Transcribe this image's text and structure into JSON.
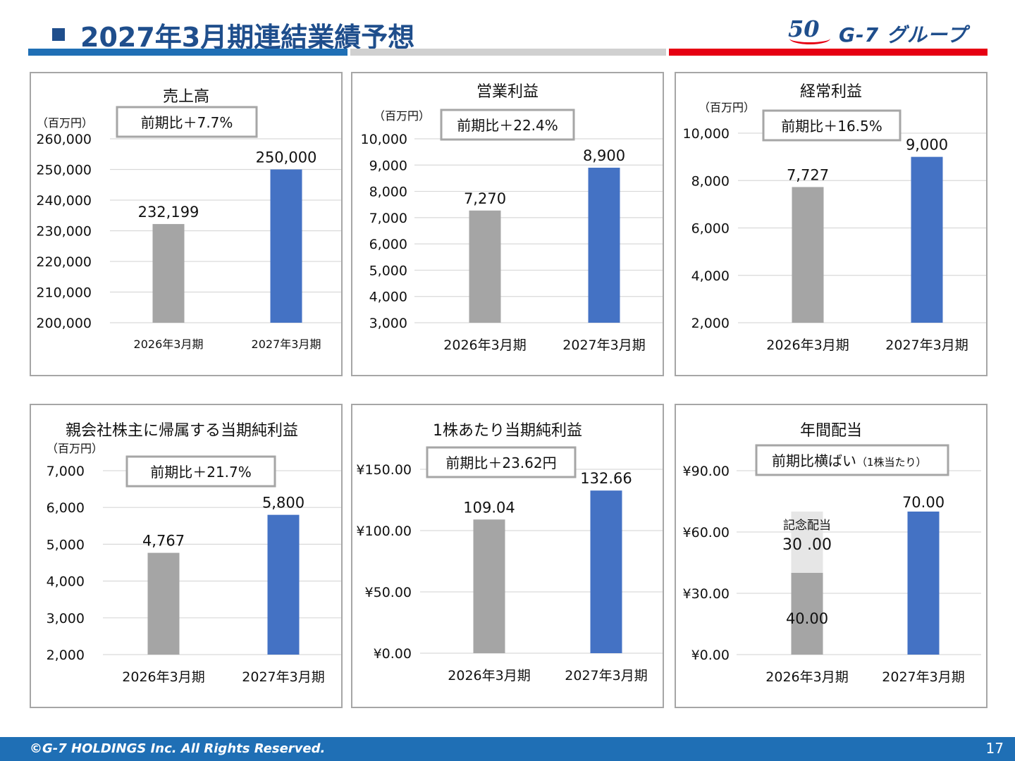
{
  "page_title": "2027年3月期連結業績予想",
  "logo": {
    "mark": "50",
    "name": "G-7 グループ"
  },
  "colors": {
    "prev": "#A5A5A5",
    "curr": "#4472C4",
    "extra": "#E6E6E6",
    "accent_blue": "#1F6FB5",
    "accent_gray": "#D0D0D0",
    "accent_red": "#E60012"
  },
  "footer": {
    "copyright": "©G-7 HOLDINGS Inc. All Rights Reserved.",
    "page_number": "17"
  },
  "chart_data": [
    {
      "type": "bar",
      "title": "売上高",
      "unit": "（百万円）",
      "badge": "前期比＋7.7%",
      "categories": [
        "2026年3月期",
        "2027年3月期"
      ],
      "values": [
        232199,
        250000
      ],
      "labels": [
        "232,199",
        "250,000"
      ],
      "ylim": [
        200000,
        260000
      ],
      "yticks": [
        200000,
        210000,
        220000,
        230000,
        240000,
        250000,
        260000
      ],
      "ytick_labels": [
        "200,000",
        "210,000",
        "220,000",
        "230,000",
        "240,000",
        "250,000",
        "260,000"
      ]
    },
    {
      "type": "bar",
      "title": "営業利益",
      "unit": "（百万円）",
      "badge": "前期比＋22.4%",
      "categories": [
        "2026年3月期",
        "2027年3月期"
      ],
      "values": [
        7270,
        8900
      ],
      "labels": [
        "7,270",
        "8,900"
      ],
      "ylim": [
        3000,
        10000
      ],
      "yticks": [
        3000,
        4000,
        5000,
        6000,
        7000,
        8000,
        9000,
        10000
      ],
      "ytick_labels": [
        "3,000",
        "4,000",
        "5,000",
        "6,000",
        "7,000",
        "8,000",
        "9,000",
        "10,000"
      ]
    },
    {
      "type": "bar",
      "title": "経常利益",
      "unit": "（百万円）",
      "badge": "前期比＋16.5%",
      "categories": [
        "2026年3月期",
        "2027年3月期"
      ],
      "values": [
        7727,
        9000
      ],
      "labels": [
        "7,727",
        "9,000"
      ],
      "ylim": [
        2000,
        10000
      ],
      "yticks": [
        2000,
        4000,
        6000,
        8000,
        10000
      ],
      "ytick_labels": [
        "2,000",
        "4,000",
        "6,000",
        "8,000",
        "10,000"
      ]
    },
    {
      "type": "bar",
      "title": "親会社株主に帰属する当期純利益",
      "unit": "（百万円）",
      "badge": "前期比＋21.7%",
      "categories": [
        "2026年3月期",
        "2027年3月期"
      ],
      "values": [
        4767,
        5800
      ],
      "labels": [
        "4,767",
        "5,800"
      ],
      "ylim": [
        2000,
        7000
      ],
      "yticks": [
        2000,
        3000,
        4000,
        5000,
        6000,
        7000
      ],
      "ytick_labels": [
        "2,000",
        "3,000",
        "4,000",
        "5,000",
        "6,000",
        "7,000"
      ]
    },
    {
      "type": "bar",
      "title": "1株あたり当期純利益",
      "unit": "",
      "badge": "前期比＋23.62円",
      "categories": [
        "2026年3月期",
        "2027年3月期"
      ],
      "values": [
        109.04,
        132.66
      ],
      "labels": [
        "109.04",
        "132.66"
      ],
      "ylim": [
        0,
        150
      ],
      "yticks": [
        0,
        50,
        100,
        150
      ],
      "ytick_labels": [
        "¥0.00",
        "¥50.00",
        "¥100.00",
        "¥150.00"
      ]
    },
    {
      "type": "bar",
      "stacked": true,
      "title": "年間配当",
      "unit": "",
      "badge": "前期比横ばい",
      "badge_note": "（1株当たり）",
      "categories": [
        "2026年3月期",
        "2027年3月期"
      ],
      "series": [
        {
          "name": "",
          "values": [
            40,
            70
          ],
          "labels": [
            "40.00",
            "70.00"
          ]
        },
        {
          "name": "記念配当",
          "values": [
            30,
            0
          ],
          "labels": [
            "30 .00",
            ""
          ]
        }
      ],
      "ylim": [
        0,
        90
      ],
      "yticks": [
        0,
        30,
        60,
        90
      ],
      "ytick_labels": [
        "¥0.00",
        "¥30.00",
        "¥60.00",
        "¥90.00"
      ]
    }
  ]
}
